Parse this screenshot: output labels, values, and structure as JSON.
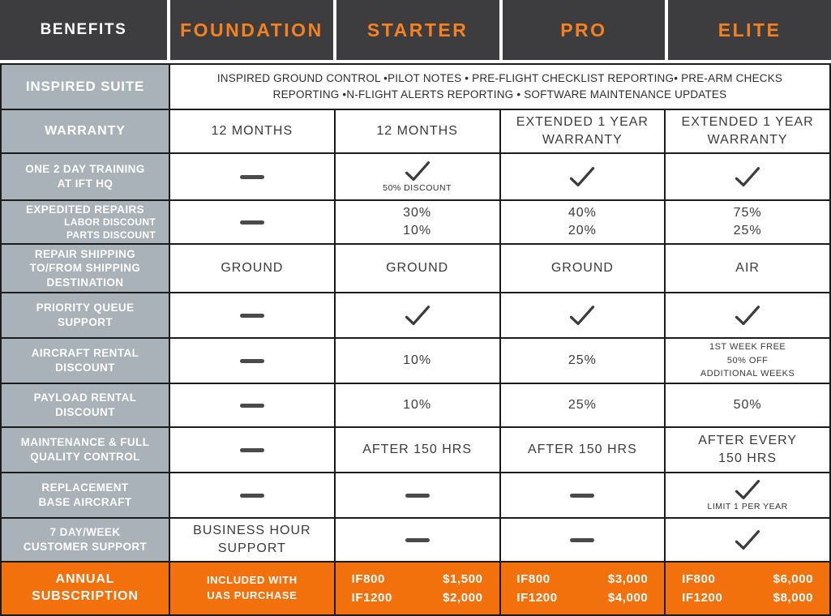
{
  "colors": {
    "plan_header_text": "#F5821E",
    "header_bg": "#3D3D3F",
    "label_bg": "#A9B2B9",
    "subscription_bg": "#F2710D",
    "border": "#1C1C1C",
    "ink": "#3B3B3B"
  },
  "header": {
    "benefits": "BENEFITS",
    "plans": [
      "FOUNDATION",
      "STARTER",
      "PRO",
      "ELITE"
    ]
  },
  "suite": {
    "label": "INSPIRED SUITE",
    "line1": "INSPIRED GROUND CONTROL •PILOT NOTES • PRE-FLIGHT CHECKLIST REPORTING•  PRE-ARM CHECKS",
    "line2": "REPORTING  •N-FLIGHT ALERTS REPORTING • SOFTWARE MAINTENANCE UPDATES"
  },
  "rows": [
    {
      "label_lines": [
        "WARRANTY"
      ],
      "cells": [
        {
          "type": "text",
          "lines": [
            "12 MONTHS"
          ]
        },
        {
          "type": "text",
          "lines": [
            "12 MONTHS"
          ]
        },
        {
          "type": "text",
          "lines": [
            "EXTENDED 1 YEAR",
            "WARRANTY"
          ]
        },
        {
          "type": "text",
          "lines": [
            "EXTENDED 1 YEAR",
            "WARRANTY"
          ]
        }
      ]
    },
    {
      "label_lines": [
        "ONE 2 DAY TRAINING",
        "AT IFT HQ"
      ],
      "cells": [
        {
          "type": "dash"
        },
        {
          "type": "check",
          "note": "50% DISCOUNT"
        },
        {
          "type": "check"
        },
        {
          "type": "check"
        }
      ]
    },
    {
      "label_lines": [
        "EXPEDITED REPAIRS"
      ],
      "sub_lines": [
        "LABOR DISCOUNT",
        "PARTS DISCOUNT"
      ],
      "cells": [
        {
          "type": "dash"
        },
        {
          "type": "text",
          "lines": [
            "30%",
            "10%"
          ]
        },
        {
          "type": "text",
          "lines": [
            "40%",
            "20%"
          ]
        },
        {
          "type": "text",
          "lines": [
            "75%",
            "25%"
          ]
        }
      ]
    },
    {
      "label_lines": [
        "REPAIR SHIPPING",
        "TO/FROM SHIPPING",
        "DESTINATION"
      ],
      "cells": [
        {
          "type": "text",
          "lines": [
            "GROUND"
          ]
        },
        {
          "type": "text",
          "lines": [
            "GROUND"
          ]
        },
        {
          "type": "text",
          "lines": [
            "GROUND"
          ]
        },
        {
          "type": "text",
          "lines": [
            "AIR"
          ]
        }
      ]
    },
    {
      "label_lines": [
        "PRIORITY QUEUE",
        "SUPPORT"
      ],
      "cells": [
        {
          "type": "dash"
        },
        {
          "type": "check"
        },
        {
          "type": "check"
        },
        {
          "type": "check"
        }
      ]
    },
    {
      "label_lines": [
        "AIRCRAFT RENTAL",
        "DISCOUNT"
      ],
      "cells": [
        {
          "type": "dash"
        },
        {
          "type": "text",
          "lines": [
            "10%"
          ]
        },
        {
          "type": "text",
          "lines": [
            "25%"
          ]
        },
        {
          "type": "text",
          "small": true,
          "lines": [
            "1ST WEEK FREE",
            "50% OFF",
            "ADDITIONAL WEEKS"
          ]
        }
      ]
    },
    {
      "label_lines": [
        "PAYLOAD RENTAL",
        "DISCOUNT"
      ],
      "cells": [
        {
          "type": "dash"
        },
        {
          "type": "text",
          "lines": [
            "10%"
          ]
        },
        {
          "type": "text",
          "lines": [
            "25%"
          ]
        },
        {
          "type": "text",
          "lines": [
            "50%"
          ]
        }
      ]
    },
    {
      "label_lines": [
        "MAINTENANCE & FULL",
        "QUALITY CONTROL"
      ],
      "cells": [
        {
          "type": "dash"
        },
        {
          "type": "text",
          "lines": [
            "AFTER 150 HRS"
          ]
        },
        {
          "type": "text",
          "lines": [
            "AFTER 150 HRS"
          ]
        },
        {
          "type": "text",
          "lines": [
            "AFTER EVERY",
            "150 HRS"
          ]
        }
      ]
    },
    {
      "label_lines": [
        "REPLACEMENT",
        "BASE AIRCRAFT"
      ],
      "cells": [
        {
          "type": "dash"
        },
        {
          "type": "dash"
        },
        {
          "type": "dash"
        },
        {
          "type": "check",
          "note": "LIMIT 1 PER YEAR"
        }
      ]
    },
    {
      "label_lines": [
        "7 DAY/WEEK",
        "CUSTOMER SUPPORT"
      ],
      "cells": [
        {
          "type": "text",
          "lines": [
            "BUSINESS HOUR",
            "SUPPORT"
          ]
        },
        {
          "type": "dash"
        },
        {
          "type": "dash"
        },
        {
          "type": "check"
        }
      ]
    }
  ],
  "subscription": {
    "label_lines": [
      "ANNUAL",
      "SUBSCRIPTION"
    ],
    "foundation_lines": [
      "INCLUDED WITH",
      "UAS PURCHASE"
    ],
    "plans": [
      {
        "prices": [
          {
            "model": "IF800",
            "price": "$1,500"
          },
          {
            "model": "IF1200",
            "price": "$2,000"
          }
        ]
      },
      {
        "prices": [
          {
            "model": "IF800",
            "price": "$3,000"
          },
          {
            "model": "IF1200",
            "price": "$4,000"
          }
        ]
      },
      {
        "prices": [
          {
            "model": "IF800",
            "price": "$6,000"
          },
          {
            "model": "IF1200",
            "price": "$8,000"
          }
        ]
      }
    ]
  },
  "chart_data": {
    "type": "table",
    "title": "Inspired Flight benefits comparison by subscription tier",
    "columns": [
      "BENEFITS",
      "FOUNDATION",
      "STARTER",
      "PRO",
      "ELITE"
    ],
    "rows": [
      {
        "benefit": "INSPIRED SUITE",
        "values": [
          "INSPIRED GROUND CONTROL • PILOT NOTES • PRE-FLIGHT CHECKLIST REPORTING • PRE-ARM CHECKS REPORTING • IN-FLIGHT ALERTS REPORTING • SOFTWARE MAINTENANCE UPDATES (ALL PLANS)",
          "",
          "",
          ""
        ]
      },
      {
        "benefit": "WARRANTY",
        "values": [
          "12 MONTHS",
          "12 MONTHS",
          "EXTENDED 1 YEAR WARRANTY",
          "EXTENDED 1 YEAR WARRANTY"
        ]
      },
      {
        "benefit": "ONE 2 DAY TRAINING AT IFT HQ",
        "values": [
          "—",
          "✓ (50% DISCOUNT)",
          "✓",
          "✓"
        ]
      },
      {
        "benefit": "EXPEDITED REPAIRS: LABOR DISCOUNT / PARTS DISCOUNT",
        "values": [
          "—",
          "30% / 10%",
          "40% / 20%",
          "75% / 25%"
        ]
      },
      {
        "benefit": "REPAIR SHIPPING TO/FROM SHIPPING DESTINATION",
        "values": [
          "GROUND",
          "GROUND",
          "GROUND",
          "AIR"
        ]
      },
      {
        "benefit": "PRIORITY QUEUE SUPPORT",
        "values": [
          "—",
          "✓",
          "✓",
          "✓"
        ]
      },
      {
        "benefit": "AIRCRAFT RENTAL DISCOUNT",
        "values": [
          "—",
          "10%",
          "25%",
          "1ST WEEK FREE, 50% OFF ADDITIONAL WEEKS"
        ]
      },
      {
        "benefit": "PAYLOAD RENTAL DISCOUNT",
        "values": [
          "—",
          "10%",
          "25%",
          "50%"
        ]
      },
      {
        "benefit": "MAINTENANCE & FULL QUALITY CONTROL",
        "values": [
          "—",
          "AFTER 150 HRS",
          "AFTER 150 HRS",
          "AFTER EVERY 150 HRS"
        ]
      },
      {
        "benefit": "REPLACEMENT BASE AIRCRAFT",
        "values": [
          "—",
          "—",
          "—",
          "✓ (LIMIT 1 PER YEAR)"
        ]
      },
      {
        "benefit": "7 DAY/WEEK CUSTOMER SUPPORT",
        "values": [
          "BUSINESS HOUR SUPPORT",
          "—",
          "—",
          "✓"
        ]
      },
      {
        "benefit": "ANNUAL SUBSCRIPTION",
        "values": [
          "INCLUDED WITH UAS PURCHASE",
          "IF800 $1,500 / IF1200 $2,000",
          "IF800 $3,000 / IF1200 $4,000",
          "IF800 $6,000 / IF1200 $8,000"
        ]
      }
    ]
  }
}
